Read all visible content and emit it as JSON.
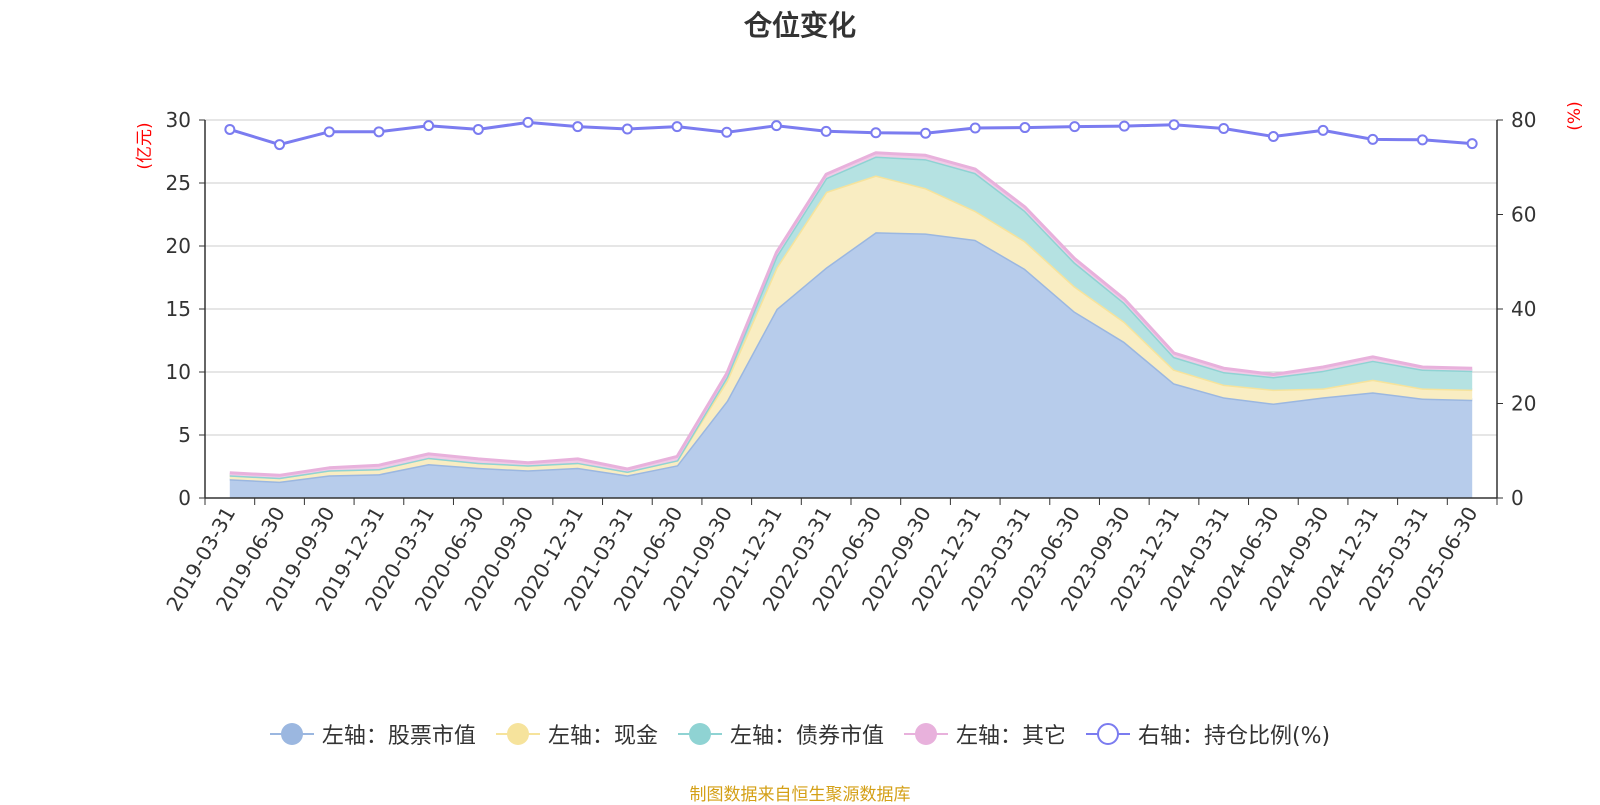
{
  "chart_data": {
    "type": "area",
    "title": "仓位变化",
    "ylabel_left": "(亿元)",
    "ylabel_right": "(%)",
    "ylim_left": [
      0,
      30
    ],
    "ylim_right": [
      0,
      80
    ],
    "yticks_left": [
      "0",
      "5",
      "10",
      "15",
      "20",
      "25",
      "30"
    ],
    "yticks_right": [
      "0",
      "20",
      "40",
      "60",
      "80"
    ],
    "grid": true,
    "legend_position": "bottom",
    "x": [
      "2019-03-31",
      "2019-06-30",
      "2019-09-30",
      "2019-12-31",
      "2020-03-31",
      "2020-06-30",
      "2020-09-30",
      "2020-12-31",
      "2021-03-31",
      "2021-06-30",
      "2021-09-30",
      "2021-12-31",
      "2022-03-31",
      "2022-06-30",
      "2022-09-30",
      "2022-12-31",
      "2023-03-31",
      "2023-06-30",
      "2023-09-30",
      "2023-12-31",
      "2024-03-31",
      "2024-06-30",
      "2024-09-30",
      "2024-12-31",
      "2025-03-31",
      "2025-06-30"
    ],
    "series": [
      {
        "name": "左轴：股票市值",
        "axis": "left",
        "stacked": true,
        "color": "#9bb7e0",
        "fill": "#b7cceb",
        "values": [
          1.5,
          1.3,
          1.8,
          1.9,
          2.7,
          2.4,
          2.2,
          2.4,
          1.8,
          2.6,
          7.7,
          15.0,
          18.3,
          21.1,
          21.0,
          20.5,
          18.2,
          14.8,
          12.4,
          9.1,
          8.0,
          7.5,
          8.0,
          8.4,
          7.9,
          7.8
        ]
      },
      {
        "name": "左轴：现金",
        "axis": "left",
        "stacked": true,
        "color": "#f6e39c",
        "fill": "#f9edc2",
        "values": [
          0.3,
          0.3,
          0.4,
          0.4,
          0.5,
          0.4,
          0.4,
          0.4,
          0.3,
          0.4,
          1.6,
          3.3,
          6.0,
          4.5,
          3.6,
          2.3,
          2.2,
          2.0,
          1.6,
          1.1,
          1.0,
          1.1,
          0.7,
          1.0,
          0.8,
          0.8
        ]
      },
      {
        "name": "左轴：债券市值",
        "axis": "left",
        "stacked": true,
        "color": "#8fd3d3",
        "fill": "#b5e2e2",
        "values": [
          0.0,
          0.0,
          0.0,
          0.0,
          0.0,
          0.0,
          0.0,
          0.0,
          0.0,
          0.0,
          0.3,
          0.9,
          1.1,
          1.5,
          2.3,
          3.0,
          2.4,
          1.9,
          1.5,
          1.0,
          1.0,
          1.0,
          1.4,
          1.5,
          1.5,
          1.5
        ]
      },
      {
        "name": "左轴：其它",
        "axis": "left",
        "stacked": true,
        "color": "#e8b1dc",
        "fill": "#f0cbe7",
        "values": [
          0.2,
          0.2,
          0.2,
          0.3,
          0.3,
          0.3,
          0.2,
          0.3,
          0.2,
          0.3,
          0.3,
          0.3,
          0.3,
          0.3,
          0.3,
          0.3,
          0.3,
          0.3,
          0.3,
          0.3,
          0.3,
          0.2,
          0.3,
          0.3,
          0.2,
          0.2
        ]
      },
      {
        "name": "右轴：持仓比例(%)",
        "axis": "right",
        "stacked": false,
        "color": "#7b7cf0",
        "fill": "none",
        "values": [
          78.0,
          74.8,
          77.5,
          77.5,
          78.8,
          78.0,
          79.5,
          78.6,
          78.1,
          78.6,
          77.4,
          78.8,
          77.6,
          77.3,
          77.2,
          78.3,
          78.4,
          78.6,
          78.7,
          79.0,
          78.2,
          76.5,
          77.8,
          75.9,
          75.8,
          75.0
        ]
      }
    ]
  },
  "legend": [
    {
      "label": "左轴：股票市值",
      "style": "filled",
      "color": "#9bb7e0"
    },
    {
      "label": "左轴：现金",
      "style": "filled",
      "color": "#f6e39c"
    },
    {
      "label": "左轴：债券市值",
      "style": "filled",
      "color": "#8fd3d3"
    },
    {
      "label": "左轴：其它",
      "style": "filled",
      "color": "#e8b1dc"
    },
    {
      "label": "右轴：持仓比例(%)",
      "style": "hollow",
      "color": "#7b7cf0"
    }
  ],
  "source_note": "制图数据来自恒生聚源数据库"
}
